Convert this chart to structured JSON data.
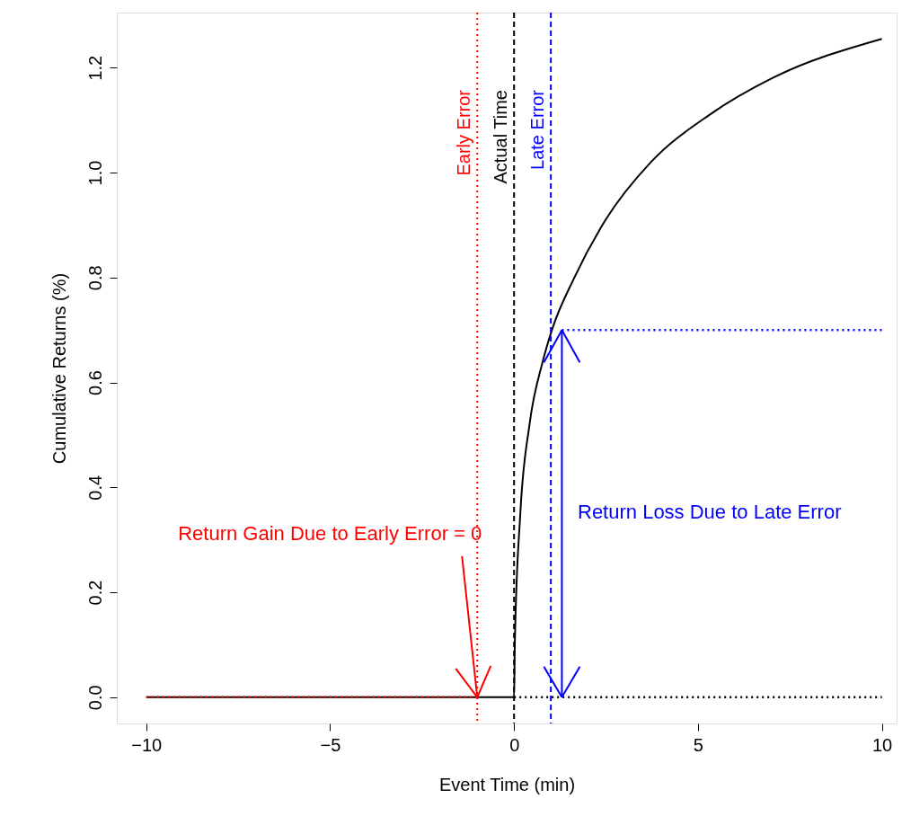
{
  "chart_data": {
    "type": "line",
    "xlabel": "Event Time (min)",
    "ylabel": "Cumulative Returns (%)",
    "xlim": [
      -10.8,
      10.4
    ],
    "ylim": [
      -0.05,
      1.305
    ],
    "xticks": [
      {
        "value": -10,
        "label": "−10"
      },
      {
        "value": -5,
        "label": "−5"
      },
      0,
      5,
      10
    ],
    "yticks": [
      {
        "value": 0,
        "label": "0.0"
      },
      0.2,
      0.4,
      0.6,
      0.8,
      {
        "value": 1,
        "label": "1.0"
      },
      1.2
    ],
    "grid": false,
    "marker": "none",
    "series": [
      {
        "color": "#000000",
        "line_style": "solid",
        "x": [
          -10,
          0,
          0.02,
          0.17,
          0.42,
          0.78,
          1.03,
          1.64,
          2.49,
          3.72,
          5.31,
          7.02,
          10
        ],
        "values": [
          0,
          0,
          0.1,
          0.35,
          0.52,
          0.64,
          0.7,
          0.8,
          0.91,
          1.02,
          1.11,
          1.18,
          1.255
        ]
      },
      {
        "color": "#ff0000",
        "line_style": "dotted",
        "x": [
          -10,
          -1
        ],
        "values": [
          0,
          0
        ]
      },
      {
        "color": "#000000",
        "line_style": "dotted",
        "x": [
          0,
          10
        ],
        "values": [
          0,
          0
        ]
      },
      {
        "color": "#0000ff",
        "line_style": "dotted",
        "x": [
          1.3,
          10
        ],
        "values": [
          0.7,
          0.7
        ]
      },
      {
        "color": "#0000ff",
        "line_style": "solid",
        "x": [
          1.3,
          1.3
        ],
        "values": [
          0,
          0.7
        ]
      }
    ],
    "ref_lines": [
      {
        "axis": "x",
        "value": -1,
        "label": "Early Error",
        "color": "#ff0000",
        "line_style": "dotted"
      },
      {
        "axis": "x",
        "value": 0,
        "label": "Actual Time",
        "color": "#000000",
        "line_style": "dashed"
      },
      {
        "axis": "x",
        "value": 1,
        "label": "Late Error",
        "color": "#0000ff",
        "line_style": "dashed"
      }
    ],
    "annotations": [
      {
        "text": "Return Gain Due to Early Error = 0",
        "x": -1,
        "y": 0
      },
      "Return Loss Due to Late Error"
    ]
  }
}
